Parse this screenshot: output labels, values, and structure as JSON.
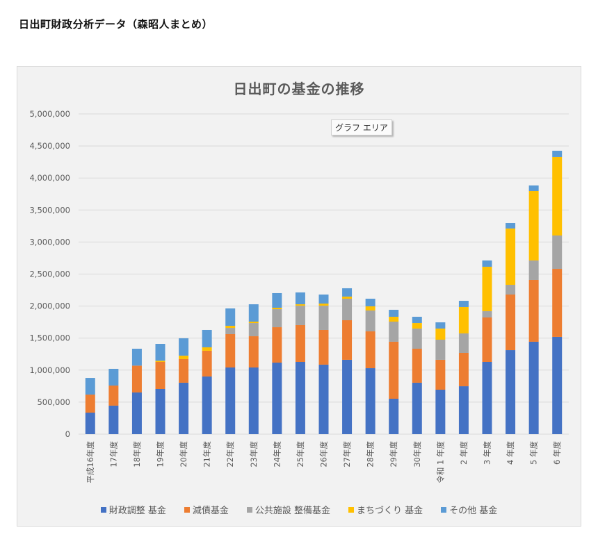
{
  "page": {
    "title": "日出町財政分析データ（森昭人まとめ）"
  },
  "tooltip": {
    "text": "グラフ エリア"
  },
  "chart_data": {
    "type": "bar",
    "stacked": true,
    "title": "日出町の基金の推移",
    "xlabel": "",
    "ylabel": "",
    "ylim": [
      0,
      5000000
    ],
    "yticks": [
      0,
      500000,
      1000000,
      1500000,
      2000000,
      2500000,
      3000000,
      3500000,
      4000000,
      4500000,
      5000000
    ],
    "ytick_labels": [
      "0",
      "500,000",
      "1,000,000",
      "1,500,000",
      "2,000,000",
      "2,500,000",
      "3,000,000",
      "3,500,000",
      "4,000,000",
      "4,500,000",
      "5,000,000"
    ],
    "grid": true,
    "legend_position": "bottom",
    "categories": [
      "平成16年度",
      "17年度",
      "18年度",
      "19年度",
      "20年度",
      "21年度",
      "22年度",
      "23年度",
      "24年度",
      "25年度",
      "26年度",
      "27年度",
      "28年度",
      "29年度",
      "30年度",
      "令和 1 年度",
      "2 年度",
      "3 年度",
      "4 年度",
      "5 年度",
      "6 年度"
    ],
    "series": [
      {
        "name": "財政調整 基金",
        "color": "#4472c4",
        "values": [
          336000,
          445000,
          651000,
          705000,
          803000,
          900000,
          1041000,
          1041000,
          1117000,
          1128000,
          1085000,
          1161000,
          1030000,
          553000,
          803000,
          694000,
          748000,
          1128000,
          1312000,
          1443000,
          1519000
        ]
      },
      {
        "name": "減債基金",
        "color": "#ed7d31",
        "values": [
          282000,
          314000,
          419000,
          423000,
          369000,
          402000,
          521000,
          488000,
          553000,
          575000,
          542000,
          618000,
          575000,
          890000,
          531000,
          467000,
          521000,
          694000,
          868000,
          965000,
          1062000
        ]
      },
      {
        "name": "公共施設 整備基金",
        "color": "#a5a5a5",
        "values": [
          0,
          0,
          0,
          0,
          0,
          0,
          97000,
          206000,
          282000,
          303000,
          379000,
          336000,
          326000,
          314000,
          315000,
          314000,
          304000,
          98000,
          152000,
          304000,
          521000
        ]
      },
      {
        "name": "まちづくり 基金",
        "color": "#ffc000",
        "values": [
          0,
          0,
          0,
          18000,
          54000,
          54000,
          33000,
          22000,
          22000,
          22000,
          33000,
          33000,
          65000,
          76000,
          86000,
          174000,
          412000,
          694000,
          879000,
          1084000,
          1226000
        ]
      },
      {
        "name": "その他 基金",
        "color": "#5b9bd5",
        "values": [
          260000,
          261000,
          264000,
          264000,
          271000,
          271000,
          271000,
          271000,
          228000,
          185000,
          141000,
          130000,
          119000,
          109000,
          98000,
          97000,
          97000,
          98000,
          86000,
          87000,
          97000
        ]
      }
    ]
  }
}
